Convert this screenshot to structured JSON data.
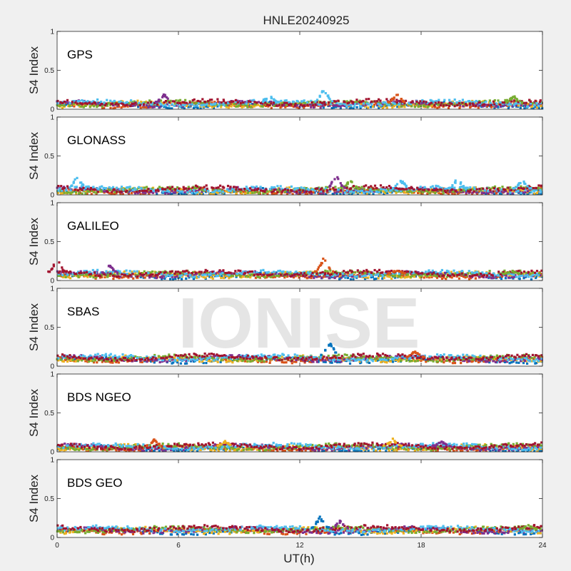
{
  "chart_data": {
    "type": "scatter",
    "title": "HNLE20240925",
    "watermark": "IONISE",
    "xlabel": "UT(h)",
    "ylabel": "S4 Index",
    "xlim": [
      0,
      24
    ],
    "ylim": [
      0,
      1
    ],
    "x_ticks": [
      "0",
      "6",
      "12",
      "18",
      "24"
    ],
    "y_ticks": [
      "0",
      "0.5",
      "1"
    ],
    "series_colors": [
      "#0072BD",
      "#D95319",
      "#EDB120",
      "#7E2F8E",
      "#77AC30",
      "#4DBEEE",
      "#A2142F"
    ],
    "panels": [
      {
        "name": "GPS",
        "baseline": 0.07,
        "features": [
          {
            "x": 13.2,
            "y_max": 0.27,
            "color": "#4DBEEE"
          },
          {
            "x": 10.5,
            "y_max": 0.19,
            "color": "#4DBEEE"
          },
          {
            "x": 5.3,
            "y_max": 0.2,
            "color": "#7E2F8E"
          },
          {
            "x": 16.8,
            "y_max": 0.2,
            "color": "#D95319"
          },
          {
            "x": 22.6,
            "y_max": 0.18,
            "color": "#77AC30"
          }
        ]
      },
      {
        "name": "GLONASS",
        "baseline": 0.06,
        "features": [
          {
            "x": 1.0,
            "y_max": 0.25,
            "color": "#4DBEEE"
          },
          {
            "x": 13.8,
            "y_max": 0.26,
            "color": "#7E2F8E"
          },
          {
            "x": 14.5,
            "y_max": 0.2,
            "color": "#77AC30"
          },
          {
            "x": 17.0,
            "y_max": 0.2,
            "color": "#4DBEEE"
          },
          {
            "x": 19.8,
            "y_max": 0.22,
            "color": "#4DBEEE"
          },
          {
            "x": 23.0,
            "y_max": 0.2,
            "color": "#4DBEEE"
          }
        ]
      },
      {
        "name": "GALILEO",
        "baseline": 0.08,
        "features": [
          {
            "x": 0.0,
            "y_max": 0.28,
            "color": "#A2142F"
          },
          {
            "x": 2.6,
            "y_max": 0.2,
            "color": "#7E2F8E"
          },
          {
            "x": 13.2,
            "y_max": 0.3,
            "color": "#D95319"
          },
          {
            "x": 16.8,
            "y_max": 0.14,
            "color": "#D95319"
          },
          {
            "x": 22.5,
            "y_max": 0.12,
            "color": "#77AC30"
          }
        ]
      },
      {
        "name": "SBAS",
        "baseline": 0.1,
        "features": [
          {
            "x": 13.5,
            "y_max": 0.33,
            "color": "#0072BD"
          },
          {
            "x": 17.7,
            "y_max": 0.2,
            "color": "#D95319"
          }
        ]
      },
      {
        "name": "BDS NGEO",
        "baseline": 0.06,
        "features": [
          {
            "x": 4.8,
            "y_max": 0.16,
            "color": "#D95319"
          },
          {
            "x": 8.3,
            "y_max": 0.14,
            "color": "#EDB120"
          },
          {
            "x": 16.6,
            "y_max": 0.17,
            "color": "#EDB120"
          },
          {
            "x": 19.0,
            "y_max": 0.14,
            "color": "#7E2F8E"
          }
        ]
      },
      {
        "name": "BDS GEO",
        "baseline": 0.1,
        "features": [
          {
            "x": 13.0,
            "y_max": 0.27,
            "color": "#0072BD"
          },
          {
            "x": 14.0,
            "y_max": 0.22,
            "color": "#7E2F8E"
          },
          {
            "x": 23.3,
            "y_max": 0.16,
            "color": "#77AC30"
          }
        ]
      }
    ]
  }
}
